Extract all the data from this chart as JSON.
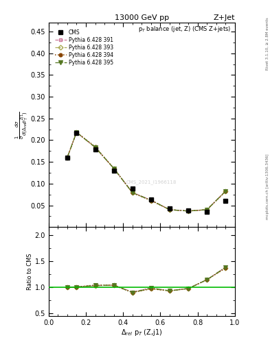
{
  "title_top": "13000 GeV pp",
  "title_right": "Z+Jet",
  "plot_title": "p$_T$ balance (jet, Z) (CMS Z+jets)",
  "xlabel": "$\\Delta_{rel}$ p$_T$ (Z,j1)",
  "ylabel_main": "$\\frac{1}{\\sigma}\\frac{d\\sigma}{d(\\Delta_{rel}p_T^{Zj1})}$",
  "ylabel_ratio": "Ratio to CMS",
  "right_label_main": "mcplots.cern.ch [arXiv:1306.3436]",
  "right_label_top": "Rivet 3.1.10, ≥ 2.8M events",
  "watermark": "CMS_2021_I1966118",
  "xlim": [
    0.0,
    1.0
  ],
  "ylim_main": [
    0.0,
    0.47
  ],
  "ylim_ratio": [
    0.45,
    2.15
  ],
  "x_data": [
    0.1,
    0.15,
    0.25,
    0.35,
    0.45,
    0.55,
    0.65,
    0.75,
    0.85,
    0.95
  ],
  "cms_y": [
    0.16,
    0.217,
    0.178,
    0.13,
    0.088,
    0.063,
    0.043,
    0.038,
    0.035,
    0.06
  ],
  "pythia391_y": [
    0.16,
    0.218,
    0.183,
    0.135,
    0.08,
    0.062,
    0.04,
    0.037,
    0.04,
    0.083
  ],
  "pythia393_y": [
    0.16,
    0.218,
    0.183,
    0.135,
    0.079,
    0.061,
    0.04,
    0.037,
    0.04,
    0.082
  ],
  "pythia394_y": [
    0.16,
    0.218,
    0.185,
    0.135,
    0.079,
    0.061,
    0.04,
    0.037,
    0.04,
    0.082
  ],
  "pythia395_y": [
    0.16,
    0.218,
    0.184,
    0.135,
    0.079,
    0.062,
    0.04,
    0.037,
    0.04,
    0.083
  ],
  "ratio391": [
    1.0,
    1.005,
    1.028,
    1.038,
    0.909,
    0.984,
    0.93,
    0.974,
    1.143,
    1.383
  ],
  "ratio393": [
    1.0,
    1.005,
    1.028,
    1.038,
    0.898,
    0.968,
    0.93,
    0.974,
    1.143,
    1.367
  ],
  "ratio394": [
    1.0,
    1.005,
    1.04,
    1.038,
    0.898,
    0.968,
    0.93,
    0.974,
    1.143,
    1.367
  ],
  "ratio395": [
    1.0,
    1.005,
    1.034,
    1.038,
    0.898,
    0.984,
    0.93,
    0.974,
    1.143,
    1.383
  ],
  "cms_color": "#000000",
  "p391_color": "#cc7799",
  "p393_color": "#aaaa55",
  "p394_color": "#884400",
  "p395_color": "#557722",
  "yticks_main": [
    0.05,
    0.1,
    0.15,
    0.2,
    0.25,
    0.3,
    0.35,
    0.4,
    0.45
  ],
  "yticks_ratio": [
    0.5,
    1.0,
    1.5,
    2.0
  ]
}
